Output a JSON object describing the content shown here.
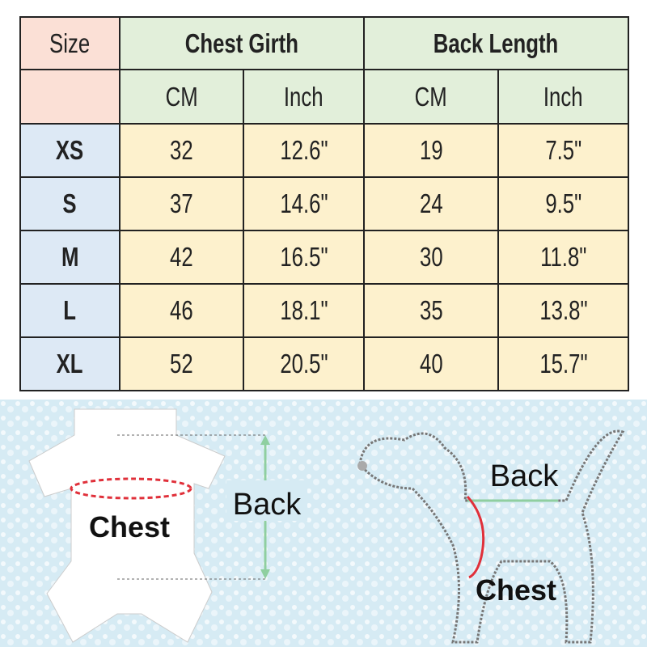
{
  "table": {
    "size_header": "Size",
    "groups": [
      "Chest Girth",
      "Back Length"
    ],
    "units": [
      "CM",
      "Inch",
      "CM",
      "Inch"
    ],
    "rows": [
      {
        "size": "XS",
        "values": [
          "32",
          "12.6\"",
          "19",
          "7.5\""
        ]
      },
      {
        "size": "S",
        "values": [
          "37",
          "14.6\"",
          "24",
          "9.5\""
        ]
      },
      {
        "size": "M",
        "values": [
          "42",
          "16.5\"",
          "30",
          "11.8\""
        ]
      },
      {
        "size": "L",
        "values": [
          "46",
          "18.1\"",
          "35",
          "13.8\""
        ]
      },
      {
        "size": "XL",
        "values": [
          "52",
          "20.5\"",
          "40",
          "15.7\""
        ]
      }
    ]
  },
  "diagram": {
    "garment_chest": "Chest",
    "garment_back": "Back",
    "dog_back": "Back",
    "dog_chest": "Chest"
  },
  "colors": {
    "size_cell": "#fbe0d6",
    "header": "#e2efda",
    "size_label": "#dde9f5",
    "data": "#fdf1cd",
    "chest_line": "#e0303a",
    "back_arrow": "#8fcfa0",
    "background": "#d6ebf4"
  }
}
